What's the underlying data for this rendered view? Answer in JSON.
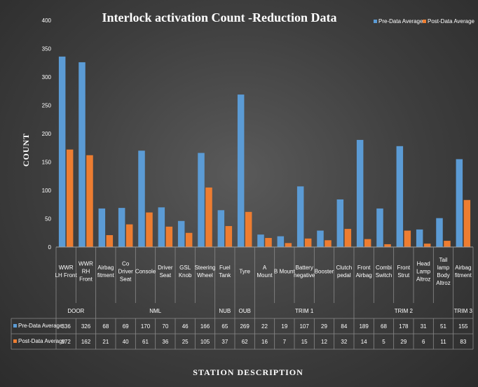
{
  "chart_data": {
    "type": "bar",
    "title": "Interlock activation Count -Reduction Data",
    "xlabel": "STATION DESCRIPTION",
    "ylabel": "COUNT",
    "ylim": [
      0,
      400
    ],
    "yticks": [
      0,
      50,
      100,
      150,
      200,
      250,
      300,
      350,
      400
    ],
    "grid": false,
    "legend_position": "top-right",
    "categories": [
      [
        "WWR",
        "LH Front"
      ],
      [
        "WWR",
        "RH",
        "Front"
      ],
      [
        "Airbag",
        "fitment"
      ],
      [
        "Co",
        "Driver",
        "Seat"
      ],
      [
        "Console"
      ],
      [
        "Driver",
        "Seat"
      ],
      [
        "GSL",
        "Knob"
      ],
      [
        "Steering",
        "Wheel"
      ],
      [
        "Fuel",
        "Tank"
      ],
      [
        "Tyre"
      ],
      [
        "A",
        "Mount"
      ],
      [
        "B Mount"
      ],
      [
        "Battery",
        "negative"
      ],
      [
        "Booster"
      ],
      [
        "Clutch",
        "pedal"
      ],
      [
        "Front",
        "Airbag"
      ],
      [
        "Combi",
        "Switch"
      ],
      [
        "Front",
        "Strut"
      ],
      [
        "Head",
        "Lamp",
        "Altroz"
      ],
      [
        "Tail",
        "lamp",
        "Body",
        "Altroz"
      ],
      [
        "Airbag",
        "fitment"
      ]
    ],
    "groups": [
      {
        "name": "DOOR",
        "count": 2
      },
      {
        "name": "NML",
        "count": 6
      },
      {
        "name": "NUB",
        "count": 1
      },
      {
        "name": "OUB",
        "count": 1
      },
      {
        "name": "TRIM 1",
        "count": 5
      },
      {
        "name": "TRIM 2",
        "count": 5
      },
      {
        "name": "TRIM 3",
        "count": 1
      }
    ],
    "series": [
      {
        "name": "Pre-Data Average",
        "color": "#5b9bd5",
        "values": [
          336,
          326,
          68,
          69,
          170,
          70,
          46,
          166,
          65,
          269,
          22,
          19,
          107,
          29,
          84,
          189,
          68,
          178,
          31,
          51,
          155
        ]
      },
      {
        "name": "Post-Data Average",
        "color": "#ed7d31",
        "values": [
          172,
          162,
          21,
          40,
          61,
          36,
          25,
          105,
          37,
          62,
          16,
          7,
          15,
          12,
          32,
          14,
          5,
          29,
          6,
          11,
          83
        ]
      }
    ]
  }
}
